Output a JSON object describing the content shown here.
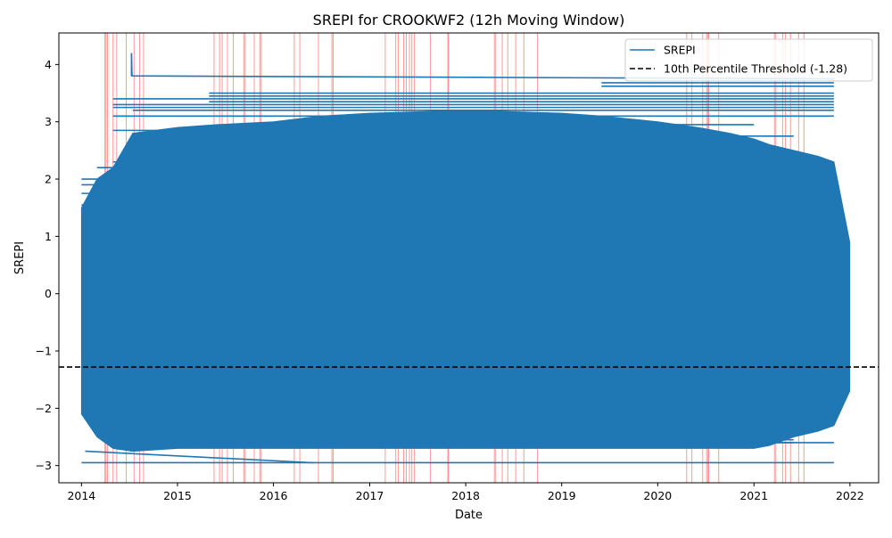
{
  "chart_data": {
    "type": "line",
    "title": "SREPI for CROOKWF2 (12h Moving Window)",
    "xlabel": "Date",
    "ylabel": "SREPI",
    "xlim": [
      "2013-10-07",
      "2022-04-20"
    ],
    "ylim": [
      -3.3,
      4.55
    ],
    "x_ticks": [
      "2014",
      "2015",
      "2016",
      "2017",
      "2018",
      "2019",
      "2020",
      "2021",
      "2022"
    ],
    "y_ticks": [
      -3,
      -2,
      -1,
      0,
      1,
      2,
      3,
      4
    ],
    "series": [
      {
        "name": "SREPI",
        "color": "#1f77b4",
        "start": "2014-01-01",
        "end": "2021-12-31",
        "min": -2.95,
        "max": 4.2,
        "band": {
          "x": [
            "2014-01-01",
            "2014-03-01",
            "2014-05-01",
            "2014-07-15",
            "2015-01-01",
            "2015-06-01",
            "2016-01-01",
            "2016-07-01",
            "2017-01-01",
            "2018-01-01",
            "2019-01-01",
            "2019-06-01",
            "2020-01-01",
            "2020-06-01",
            "2020-10-01",
            "2021-01-01",
            "2021-03-01",
            "2021-06-01",
            "2021-09-01",
            "2021-11-01",
            "2021-12-31"
          ],
          "lower": [
            -2.1,
            -2.5,
            -2.7,
            -2.75,
            -2.7,
            -2.7,
            -2.7,
            -2.7,
            -2.7,
            -2.7,
            -2.7,
            -2.7,
            -2.7,
            -2.7,
            -2.7,
            -2.7,
            -2.65,
            -2.5,
            -2.4,
            -2.3,
            -1.7
          ],
          "upper": [
            1.5,
            2.0,
            2.2,
            2.8,
            2.9,
            2.95,
            3.0,
            3.1,
            3.15,
            3.2,
            3.15,
            3.1,
            3.0,
            2.9,
            2.8,
            2.7,
            2.6,
            2.5,
            2.4,
            2.3,
            0.9
          ]
        },
        "segments": [
          {
            "x": [
              "2014-01-01",
              "2014-03-01"
            ],
            "y": 2.0
          },
          {
            "x": [
              "2014-01-01",
              "2014-03-01"
            ],
            "y": 1.9
          },
          {
            "x": [
              "2014-01-01",
              "2014-03-01"
            ],
            "y": 1.75
          },
          {
            "x": [
              "2014-01-01",
              "2014-05-01"
            ],
            "y": 1.55
          },
          {
            "x": [
              "2014-03-01",
              "2014-07-15"
            ],
            "y": 2.2
          },
          {
            "x": [
              "2014-05-01",
              "2015-06-01"
            ],
            "y": 2.3
          },
          {
            "x": [
              "2014-05-01",
              "2021-11-01"
            ],
            "y": 3.4
          },
          {
            "x": [
              "2014-05-01",
              "2021-11-01"
            ],
            "y": 3.3
          },
          {
            "x": [
              "2014-05-01",
              "2021-11-01"
            ],
            "y": 3.25
          },
          {
            "x": [
              "2014-05-01",
              "2021-11-01"
            ],
            "y": 3.1
          },
          {
            "x": [
              "2014-05-01",
              "2016-05-01"
            ],
            "y": 2.85
          },
          {
            "x": [
              "2015-05-01",
              "2021-11-01"
            ],
            "y": 3.5
          },
          {
            "x": [
              "2015-05-01",
              "2021-11-01"
            ],
            "y": 3.45
          },
          {
            "x": [
              "2015-05-01",
              "2021-11-01"
            ],
            "y": 3.35
          },
          {
            "x": [
              "2014-07-15",
              "2021-11-01"
            ],
            "y": 3.2
          },
          {
            "x": [
              "2019-06-01",
              "2021-11-01"
            ],
            "y": 3.68
          },
          {
            "x": [
              "2019-06-01",
              "2021-11-01"
            ],
            "y": 3.62
          },
          {
            "x": [
              "2020-03-01",
              "2021-01-01"
            ],
            "y": 2.95
          },
          {
            "x": [
              "2020-03-01",
              "2021-06-01"
            ],
            "y": 2.75
          },
          {
            "x": [
              "2014-01-01",
              "2021-11-01"
            ],
            "y": -2.95
          },
          {
            "x": [
              "2014-05-01",
              "2021-06-01"
            ],
            "y": -2.6
          },
          {
            "x": [
              "2014-05-01",
              "2021-06-01"
            ],
            "y": -2.55
          },
          {
            "x": [
              "2020-06-01",
              "2021-11-01"
            ],
            "y": -2.6
          }
        ],
        "paths": [
          {
            "x": [
              "2014-07-10",
              "2014-07-10",
              "2014-07-12",
              "2021-11-01"
            ],
            "y": [
              3.8,
              4.2,
              3.8,
              3.75
            ]
          },
          {
            "x": [
              "2014-01-15",
              "2016-06-01"
            ],
            "y": [
              -2.75,
              -2.95
            ]
          }
        ]
      },
      {
        "name": "10th Percentile Threshold (-1.28)",
        "color": "#000000",
        "style": "dashed",
        "y": -1.28
      }
    ],
    "event_lines_color": "#ff0000",
    "event_lines": [
      "2014-03-31",
      "2014-04-04",
      "2014-04-10",
      "2014-05-01",
      "2014-05-15",
      "2014-06-20",
      "2014-07-20",
      "2014-08-10",
      "2014-08-25",
      "2015-05-20",
      "2015-06-10",
      "2015-06-20",
      "2015-07-10",
      "2015-08-01",
      "2015-09-10",
      "2015-09-15",
      "2015-10-20",
      "2015-11-10",
      "2015-11-15",
      "2016-03-20",
      "2016-04-10",
      "2016-06-20",
      "2016-08-10",
      "2016-08-15",
      "2017-03-01",
      "2017-04-10",
      "2017-04-20",
      "2017-05-10",
      "2017-05-20",
      "2017-06-01",
      "2017-06-10",
      "2017-06-20",
      "2017-08-20",
      "2017-10-25",
      "2017-10-28",
      "2018-04-20",
      "2018-04-25",
      "2018-05-20",
      "2018-06-10",
      "2018-07-10",
      "2018-08-10",
      "2018-10-01",
      "2020-04-20",
      "2020-05-10",
      "2020-06-20",
      "2020-07-05",
      "2020-07-10",
      "2020-07-13",
      "2020-08-20",
      "2021-03-20",
      "2021-03-25",
      "2021-04-20",
      "2021-05-01",
      "2021-05-20",
      "2021-06-20",
      "2021-07-10"
    ],
    "legend": {
      "position": "upper right"
    },
    "grid": false
  }
}
